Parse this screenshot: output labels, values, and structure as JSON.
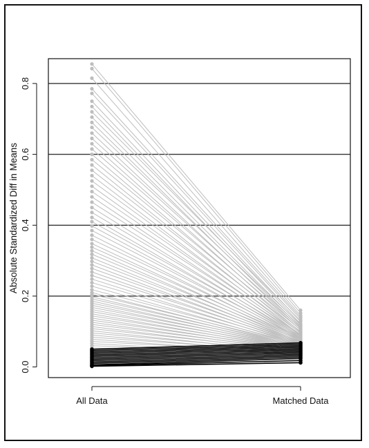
{
  "chart_data": {
    "type": "line",
    "title": "",
    "xlabel": "",
    "ylabel": "Absolute Standardized Diff in Means",
    "categories": [
      "All Data",
      "Matched Data"
    ],
    "ylim": [
      -0.03,
      0.87
    ],
    "yticks": [
      0.0,
      0.2,
      0.4,
      0.6,
      0.8
    ],
    "ytick_labels": [
      "0.0",
      "0.2",
      "0.4",
      "0.6",
      "0.8"
    ],
    "reference_lines": [
      0.2,
      0.4,
      0.6,
      0.8
    ],
    "grid": false,
    "legend": "none",
    "colors": {
      "improved": "#bdbdbd",
      "worsened": "#000000",
      "reference_line": "#333333",
      "axis": "#111111"
    },
    "improved_pairs": [
      [
        0.855,
        0.16
      ],
      [
        0.842,
        0.152
      ],
      [
        0.815,
        0.145
      ],
      [
        0.785,
        0.14
      ],
      [
        0.772,
        0.135
      ],
      [
        0.75,
        0.128
      ],
      [
        0.735,
        0.122
      ],
      [
        0.72,
        0.13
      ],
      [
        0.705,
        0.118
      ],
      [
        0.69,
        0.112
      ],
      [
        0.676,
        0.12
      ],
      [
        0.66,
        0.108
      ],
      [
        0.645,
        0.115
      ],
      [
        0.63,
        0.104
      ],
      [
        0.615,
        0.11
      ],
      [
        0.6,
        0.098
      ],
      [
        0.585,
        0.105
      ],
      [
        0.57,
        0.095
      ],
      [
        0.555,
        0.1
      ],
      [
        0.54,
        0.09
      ],
      [
        0.525,
        0.096
      ],
      [
        0.51,
        0.088
      ],
      [
        0.495,
        0.092
      ],
      [
        0.48,
        0.085
      ],
      [
        0.465,
        0.09
      ],
      [
        0.45,
        0.082
      ],
      [
        0.436,
        0.087
      ],
      [
        0.422,
        0.08
      ],
      [
        0.41,
        0.085
      ],
      [
        0.398,
        0.078
      ],
      [
        0.385,
        0.082
      ],
      [
        0.372,
        0.075
      ],
      [
        0.36,
        0.08
      ],
      [
        0.348,
        0.073
      ],
      [
        0.338,
        0.078
      ],
      [
        0.328,
        0.07
      ],
      [
        0.318,
        0.075
      ],
      [
        0.308,
        0.068
      ],
      [
        0.298,
        0.072
      ],
      [
        0.288,
        0.066
      ],
      [
        0.278,
        0.07
      ],
      [
        0.268,
        0.064
      ],
      [
        0.258,
        0.068
      ],
      [
        0.248,
        0.062
      ],
      [
        0.238,
        0.066
      ],
      [
        0.228,
        0.06
      ],
      [
        0.218,
        0.064
      ],
      [
        0.21,
        0.058
      ],
      [
        0.205,
        0.062
      ],
      [
        0.198,
        0.056
      ],
      [
        0.192,
        0.06
      ],
      [
        0.186,
        0.054
      ],
      [
        0.18,
        0.058
      ],
      [
        0.174,
        0.052
      ],
      [
        0.168,
        0.056
      ],
      [
        0.162,
        0.05
      ],
      [
        0.156,
        0.054
      ],
      [
        0.15,
        0.048
      ],
      [
        0.144,
        0.052
      ],
      [
        0.138,
        0.046
      ],
      [
        0.132,
        0.05
      ],
      [
        0.126,
        0.044
      ],
      [
        0.12,
        0.048
      ],
      [
        0.114,
        0.042
      ],
      [
        0.108,
        0.046
      ],
      [
        0.102,
        0.04
      ],
      [
        0.096,
        0.044
      ],
      [
        0.09,
        0.038
      ],
      [
        0.084,
        0.042
      ],
      [
        0.078,
        0.036
      ],
      [
        0.072,
        0.04
      ],
      [
        0.066,
        0.034
      ],
      [
        0.06,
        0.038
      ],
      [
        0.054,
        0.032
      ]
    ],
    "worsened_pairs": [
      [
        0.05,
        0.068
      ],
      [
        0.046,
        0.064
      ],
      [
        0.042,
        0.06
      ],
      [
        0.038,
        0.056
      ],
      [
        0.034,
        0.052
      ],
      [
        0.03,
        0.048
      ],
      [
        0.026,
        0.044
      ],
      [
        0.022,
        0.04
      ],
      [
        0.018,
        0.036
      ],
      [
        0.014,
        0.032
      ],
      [
        0.01,
        0.028
      ],
      [
        0.006,
        0.024
      ],
      [
        0.004,
        0.018
      ],
      [
        0.002,
        0.012
      ]
    ]
  }
}
